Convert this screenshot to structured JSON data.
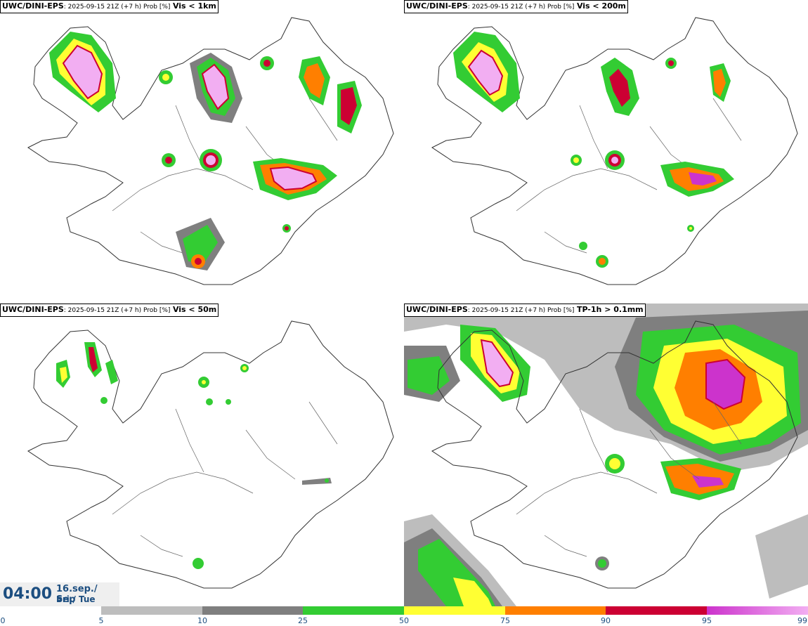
{
  "panels": [
    {
      "model": "UWC/DINI-EPS",
      "meta": ": 2025-09-15 21Z (+7 h) Prob [%]",
      "param": "Vis < 1km"
    },
    {
      "model": "UWC/DINI-EPS",
      "meta": ": 2025-09-15 21Z (+7 h) Prob [%]",
      "param": "Vis < 200m"
    },
    {
      "model": "UWC/DINI-EPS",
      "meta": ": 2025-09-15 21Z (+7 h) Prob [%]",
      "param": "Vis < 50m"
    },
    {
      "model": "UWC/DINI-EPS",
      "meta": ": 2025-09-15 21Z (+7 h) Prob [%]",
      "param": "TP-1h > 0.1mm"
    }
  ],
  "time": {
    "hour": "04:00",
    "date_line1": "16.sep./ Sep",
    "date_line2": "Þri./ Tue"
  },
  "colorbar": {
    "ticks": [
      "0",
      "5",
      "10",
      "25",
      "50",
      "75",
      "90",
      "95",
      "99"
    ],
    "colors": [
      "#ffffff",
      "#bdbdbd",
      "#7f7f7f",
      "#33cc33",
      "#ffff33",
      "#ff7f00",
      "#cc0033",
      "#cc33cc",
      "#f2aef2"
    ]
  },
  "colors": {
    "accent_text": "#1c4e80",
    "coast": "#333333"
  }
}
